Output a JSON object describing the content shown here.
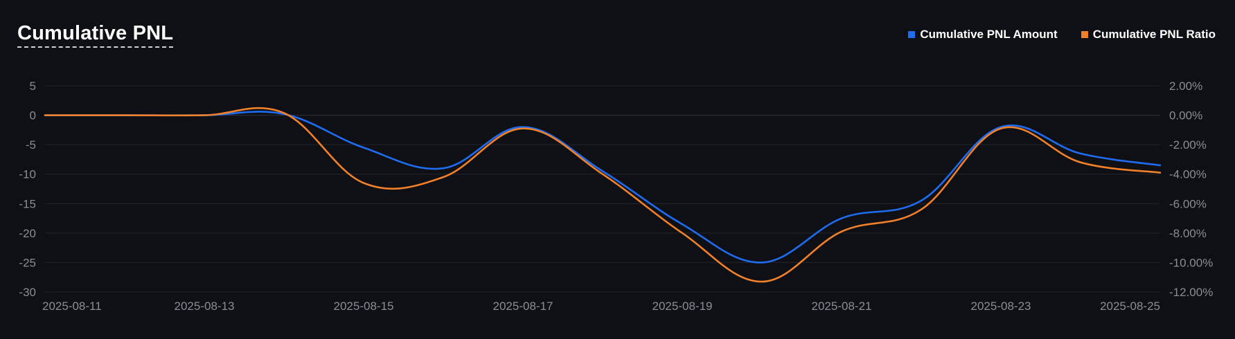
{
  "chart_data": {
    "type": "line",
    "title": "Cumulative PNL",
    "x": [
      "2025-08-11",
      "2025-08-12",
      "2025-08-13",
      "2025-08-14",
      "2025-08-15",
      "2025-08-16",
      "2025-08-17",
      "2025-08-18",
      "2025-08-19",
      "2025-08-20",
      "2025-08-21",
      "2025-08-22",
      "2025-08-23",
      "2025-08-24",
      "2025-08-25"
    ],
    "x_tick_labels": [
      "2025-08-11",
      "2025-08-13",
      "2025-08-15",
      "2025-08-17",
      "2025-08-19",
      "2025-08-21",
      "2025-08-23",
      "2025-08-25"
    ],
    "y_left": {
      "ticks": [
        5,
        0,
        -5,
        -10,
        -15,
        -20,
        -25,
        -30
      ],
      "tick_labels": [
        "5",
        "0",
        "-5",
        "-10",
        "-15",
        "-20",
        "-25",
        "-30"
      ],
      "ylim": [
        -30,
        5
      ]
    },
    "y_right": {
      "ticks": [
        2,
        0,
        -2,
        -4,
        -6,
        -8,
        -10,
        -12
      ],
      "tick_labels": [
        "2.00%",
        "0.00%",
        "-2.00%",
        "-4.00%",
        "-6.00%",
        "-8.00%",
        "-10.00%",
        "-12.00%"
      ],
      "ylim": [
        -12,
        2
      ]
    },
    "series": [
      {
        "name": "Cumulative PNL Amount",
        "axis": "left",
        "color": "#1f6cf0",
        "values": [
          0,
          0,
          0,
          0.2,
          -5.5,
          -9,
          -2,
          -9.5,
          -18.5,
          -25,
          -17.5,
          -14.5,
          -2,
          -6.5,
          -8.5
        ]
      },
      {
        "name": "Cumulative PNL Ratio",
        "axis": "right",
        "color": "#f0812a",
        "values": [
          0,
          0,
          0,
          0.15,
          -4.6,
          -4.2,
          -0.9,
          -4.0,
          -8.0,
          -11.3,
          -7.9,
          -6.4,
          -0.9,
          -3.2,
          -3.9
        ]
      }
    ],
    "grid": true,
    "legend": "top-right"
  }
}
